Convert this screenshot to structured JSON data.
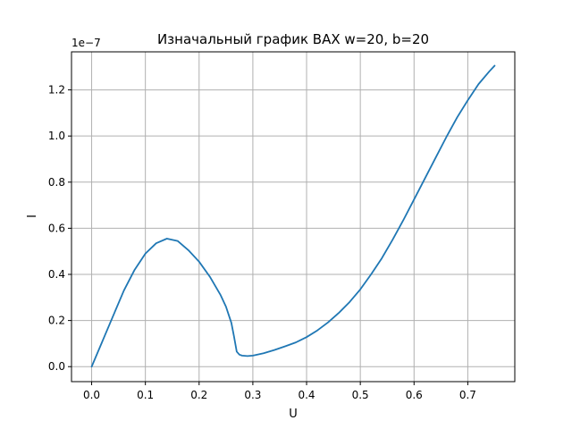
{
  "chart_data": {
    "type": "line",
    "title": "Изначальный график ВАХ w=20, b=20",
    "xlabel": "U",
    "ylabel": "I",
    "y_offset_label": "1e−7",
    "xlim": [
      -0.0375,
      0.7875
    ],
    "ylim": [
      -0.065,
      1.365
    ],
    "x_ticks": [
      0.0,
      0.1,
      0.2,
      0.3,
      0.4,
      0.5,
      0.6,
      0.7
    ],
    "x_tick_labels": [
      "0.0",
      "0.1",
      "0.2",
      "0.3",
      "0.4",
      "0.5",
      "0.6",
      "0.7"
    ],
    "y_ticks": [
      0.0,
      0.2,
      0.4,
      0.6,
      0.8,
      1.0,
      1.2
    ],
    "y_tick_labels": [
      "0.0",
      "0.2",
      "0.4",
      "0.6",
      "0.8",
      "1.0",
      "1.2"
    ],
    "grid": true,
    "line_color": "#1f77b4",
    "series": [
      {
        "x": [
          0.0,
          0.02,
          0.04,
          0.06,
          0.08,
          0.1,
          0.12,
          0.14,
          0.16,
          0.18,
          0.2,
          0.22,
          0.24,
          0.25,
          0.26,
          0.265,
          0.27,
          0.275,
          0.28,
          0.29,
          0.3,
          0.32,
          0.34,
          0.36,
          0.38,
          0.4,
          0.42,
          0.44,
          0.46,
          0.48,
          0.5,
          0.52,
          0.54,
          0.56,
          0.58,
          0.6,
          0.62,
          0.64,
          0.66,
          0.68,
          0.7,
          0.72,
          0.74,
          0.75
        ],
        "y": [
          0.0,
          0.11,
          0.22,
          0.33,
          0.42,
          0.49,
          0.535,
          0.555,
          0.545,
          0.505,
          0.455,
          0.39,
          0.31,
          0.26,
          0.19,
          0.13,
          0.065,
          0.052,
          0.048,
          0.046,
          0.048,
          0.058,
          0.072,
          0.088,
          0.105,
          0.128,
          0.157,
          0.192,
          0.233,
          0.28,
          0.335,
          0.4,
          0.47,
          0.55,
          0.635,
          0.725,
          0.815,
          0.905,
          0.995,
          1.08,
          1.155,
          1.225,
          1.28,
          1.305
        ]
      }
    ]
  }
}
